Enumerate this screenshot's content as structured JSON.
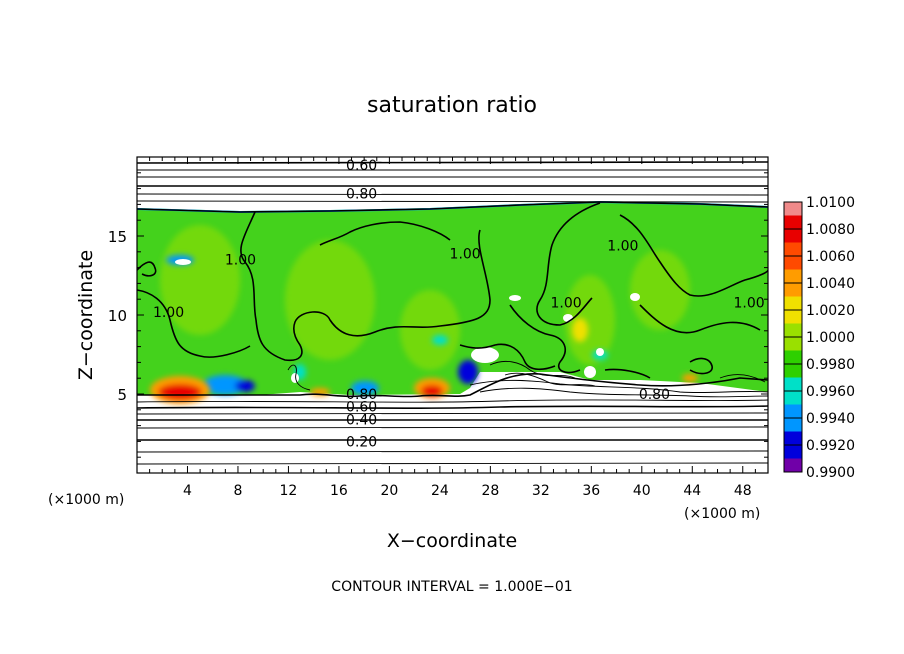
{
  "chart_data": {
    "type": "heatmap",
    "title": "saturation ratio",
    "xlabel": "X−coordinate",
    "ylabel": "Z−coordinate",
    "x_unit_left": "(×1000 m)",
    "x_unit_right": "(×1000 m)",
    "xlim": [
      0,
      50
    ],
    "ylim": [
      0,
      20
    ],
    "x_ticks": [
      4,
      8,
      12,
      16,
      20,
      24,
      28,
      32,
      36,
      40,
      44,
      48
    ],
    "y_ticks": [
      5,
      10,
      15
    ],
    "colorbar": {
      "labels": [
        "1.0100",
        "1.0080",
        "1.0060",
        "1.0040",
        "1.0020",
        "1.0000",
        "0.9980",
        "0.9960",
        "0.9940",
        "0.9920",
        "0.9900"
      ],
      "colors": [
        "#f08a8a",
        "#e80000",
        "#ff4a00",
        "#ff9c00",
        "#f0e000",
        "#9ae000",
        "#2ed000",
        "#00e0c8",
        "#0096ff",
        "#0000dc",
        "#7000a8"
      ]
    },
    "contour_labels": [
      {
        "text": "0.60",
        "x": 17.8,
        "y": 19.5
      },
      {
        "text": "0.80",
        "x": 17.8,
        "y": 17.7
      },
      {
        "text": "1.00",
        "x": 8.2,
        "y": 13.5
      },
      {
        "text": "1.00",
        "x": 26.0,
        "y": 13.9
      },
      {
        "text": "1.00",
        "x": 38.5,
        "y": 14.4
      },
      {
        "text": "1.00",
        "x": 2.5,
        "y": 10.2
      },
      {
        "text": "1.00",
        "x": 34.0,
        "y": 10.8
      },
      {
        "text": "1.00",
        "x": 48.5,
        "y": 10.8
      },
      {
        "text": "0.80",
        "x": 17.8,
        "y": 5.0
      },
      {
        "text": "0.60",
        "x": 17.8,
        "y": 4.2
      },
      {
        "text": "0.80",
        "x": 41.0,
        "y": 5.0
      },
      {
        "text": "0.40",
        "x": 17.8,
        "y": 3.4
      },
      {
        "text": "0.20",
        "x": 17.8,
        "y": 2.0
      }
    ],
    "footer": "CONTOUR INTERVAL = 1.000E−01"
  }
}
